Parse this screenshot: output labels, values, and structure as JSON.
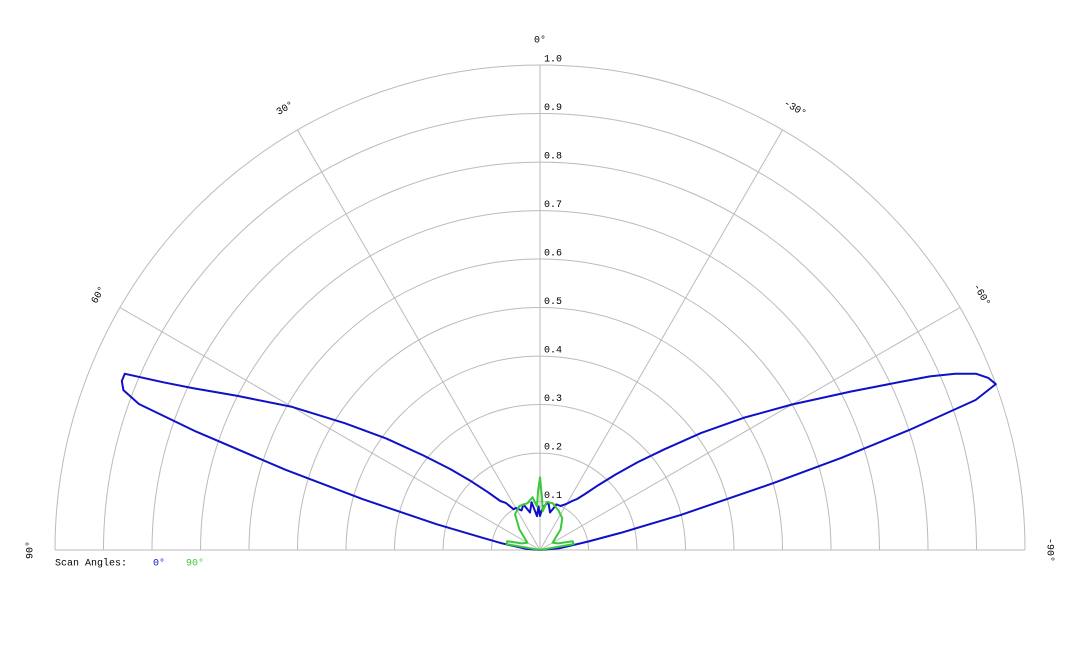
{
  "chart_data": {
    "type": "polar",
    "thetalim": [
      -90,
      90
    ],
    "thetaticks": [
      {
        "value": 90,
        "label": "90°"
      },
      {
        "value": 60,
        "label": "60°"
      },
      {
        "value": 30,
        "label": "30°"
      },
      {
        "value": 0,
        "label": "0°"
      },
      {
        "value": -30,
        "label": "-30°"
      },
      {
        "value": -60,
        "label": "-60°"
      },
      {
        "value": -90,
        "label": "-90°"
      }
    ],
    "rlim": [
      0,
      1
    ],
    "rticks": [
      0.1,
      0.2,
      0.3,
      0.4,
      0.5,
      0.6,
      0.7,
      0.8,
      0.9,
      {
        "value": 1,
        "label": "1.0"
      }
    ],
    "grid": true,
    "legend_title": "Scan Angles:",
    "series": [
      {
        "name": "0°",
        "color": "#1010c8",
        "x": [
          90,
          85,
          80,
          78,
          76,
          74,
          72.5,
          71,
          70,
          69,
          68,
          67,
          66,
          65,
          63,
          60,
          57,
          54,
          51,
          48,
          45,
          42,
          39,
          36,
          33,
          30,
          25,
          20,
          15,
          10,
          5,
          2,
          0,
          -2,
          -5,
          -10,
          -15,
          -20,
          -25,
          -30,
          -33,
          -36,
          -39,
          -42,
          -45,
          -48,
          -51,
          -54,
          -57,
          -60,
          -63,
          -65,
          -66,
          -67,
          -68,
          -69,
          -70,
          -71,
          -72,
          -73,
          -74,
          -76,
          -78,
          -80,
          -85,
          -90
        ],
        "values": [
          0,
          0.03,
          0.08,
          0.12,
          0.22,
          0.38,
          0.55,
          0.75,
          0.88,
          0.92,
          0.93,
          0.93,
          0.85,
          0.79,
          0.7,
          0.59,
          0.48,
          0.39,
          0.31,
          0.25,
          0.2,
          0.16,
          0.13,
          0.12,
          0.1,
          0.1,
          0.09,
          0.1,
          0.08,
          0.1,
          0.07,
          0.09,
          0.07,
          0.08,
          0.09,
          0.1,
          0.08,
          0.1,
          0.1,
          0.11,
          0.12,
          0.13,
          0.15,
          0.18,
          0.22,
          0.27,
          0.33,
          0.41,
          0.5,
          0.6,
          0.72,
          0.82,
          0.88,
          0.93,
          0.97,
          0.99,
          1,
          0.95,
          0.8,
          0.65,
          0.5,
          0.3,
          0.17,
          0.1,
          0.04,
          0
        ]
      },
      {
        "name": "90°",
        "color": "#3cc83c",
        "x": [
          90,
          80,
          75,
          70,
          60,
          45,
          35,
          25,
          15,
          8,
          4,
          2,
          0,
          -2,
          -4,
          -8,
          -15,
          -25,
          -35,
          -45,
          -60,
          -70,
          -75,
          -80,
          -90
        ],
        "values": [
          0,
          0.07,
          0.07,
          0.04,
          0.03,
          0.06,
          0.09,
          0.1,
          0.1,
          0.11,
          0.09,
          0.12,
          0.15,
          0.11,
          0.08,
          0.1,
          0.1,
          0.09,
          0.08,
          0.06,
          0.03,
          0.04,
          0.07,
          0.07,
          0
        ]
      }
    ]
  }
}
